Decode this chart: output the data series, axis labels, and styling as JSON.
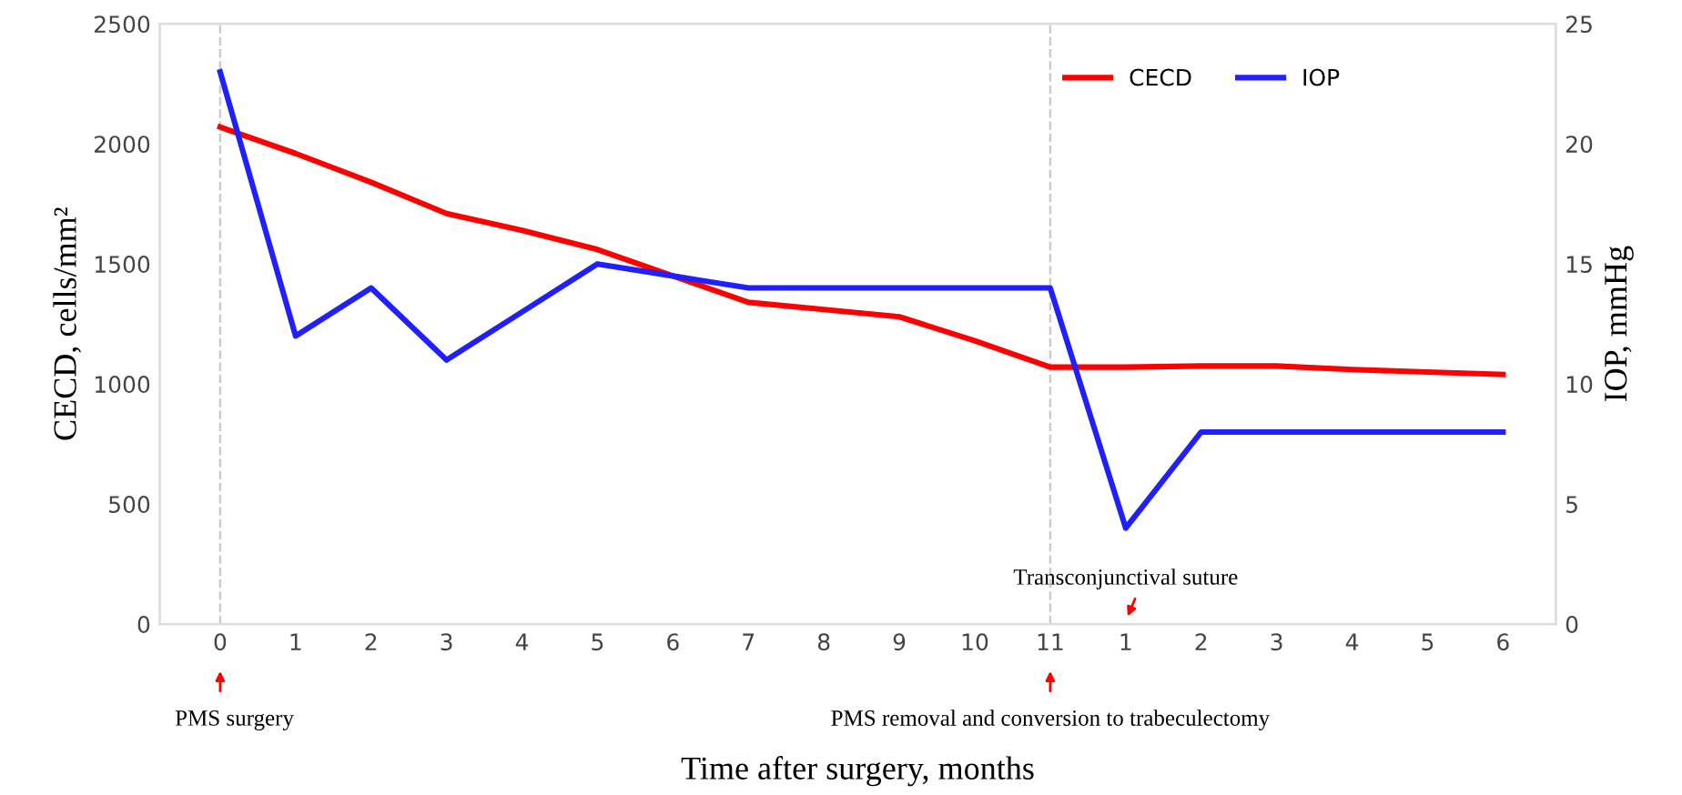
{
  "chart_data": {
    "type": "line",
    "xlabel": "Time after surgery, months",
    "ylabel": "CECD, cells/mm²",
    "y2label": "IOP, mmHg",
    "categories": [
      "0",
      "1",
      "2",
      "3",
      "4",
      "5",
      "6",
      "7",
      "8",
      "9",
      "10",
      "11",
      "1",
      "2",
      "3",
      "4",
      "5",
      "6"
    ],
    "series": [
      {
        "name": "CECD",
        "color": "#ff0000",
        "values": [
          2070,
          1960,
          1840,
          1710,
          1640,
          1560,
          1450,
          1340,
          1310,
          1280,
          1180,
          1070,
          1070,
          1075,
          1075,
          1060,
          1050,
          1040
        ]
      },
      {
        "name": "IOP",
        "color": "#2020ff",
        "axis": "y2",
        "values": [
          23,
          12,
          14,
          11,
          13,
          15,
          14.5,
          14,
          14,
          14,
          14,
          14,
          4,
          8,
          8,
          8,
          8,
          8
        ]
      }
    ],
    "ylim": [
      0,
      2500
    ],
    "yticks": [
      0,
      500,
      1000,
      1500,
      2000,
      2500
    ],
    "y2lim": [
      0,
      25
    ],
    "y2ticks": [
      0,
      5,
      10,
      15,
      20,
      25
    ],
    "ref_lines": [
      {
        "axis": "x",
        "value": "0",
        "color": "#cccccc",
        "line_style": "dashed"
      },
      {
        "axis": "x",
        "value": "11",
        "color": "#cccccc",
        "line_style": "dashed"
      }
    ],
    "annotations": [
      "PMS surgery",
      "PMS removal and conversion to trabeculectomy",
      "Transconjunctival suture"
    ],
    "legend": "top right",
    "grid": false,
    "marker": "none",
    "line_style": "solid"
  }
}
